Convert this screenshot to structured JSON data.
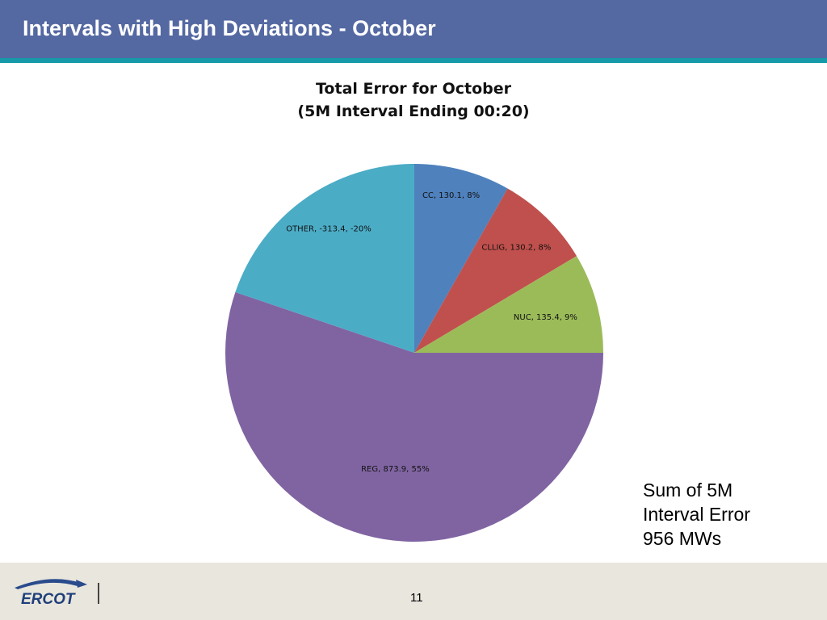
{
  "slide": {
    "title": "Intervals with High Deviations - October",
    "page_number": "11"
  },
  "summary": {
    "line1": "Sum of 5M",
    "line2": "Interval Error",
    "line3": "956 MWs"
  },
  "logo": {
    "text": "ERCOT"
  },
  "colors": {
    "header": "#5468A2",
    "header_rule": "#169AAA",
    "footer": "#E8E6DD",
    "CC": "#4F81BD",
    "CLLIG": "#C0504D",
    "NUC": "#9BBB59",
    "REG": "#8064A2",
    "OTHER": "#4BACC6"
  },
  "chart_data": {
    "type": "pie",
    "title_line1": "Total Error for October",
    "title_line2": "(5M Interval Ending 00:20)",
    "slices": [
      {
        "name": "CC",
        "value": 130.1,
        "percent": 8,
        "label": "CC, 130.1, 8%"
      },
      {
        "name": "CLLIG",
        "value": 130.2,
        "percent": 8,
        "label": "CLLIG, 130.2, 8%"
      },
      {
        "name": "NUC",
        "value": 135.4,
        "percent": 9,
        "label": "NUC, 135.4, 9%"
      },
      {
        "name": "REG",
        "value": 873.9,
        "percent": 55,
        "label": "REG, 873.9, 55%"
      },
      {
        "name": "OTHER",
        "value": -313.4,
        "percent": -20,
        "label": "OTHER, -313.4, -20%"
      }
    ],
    "start_angle": "top, clockwise",
    "legend": "none (data labels on slices)"
  }
}
